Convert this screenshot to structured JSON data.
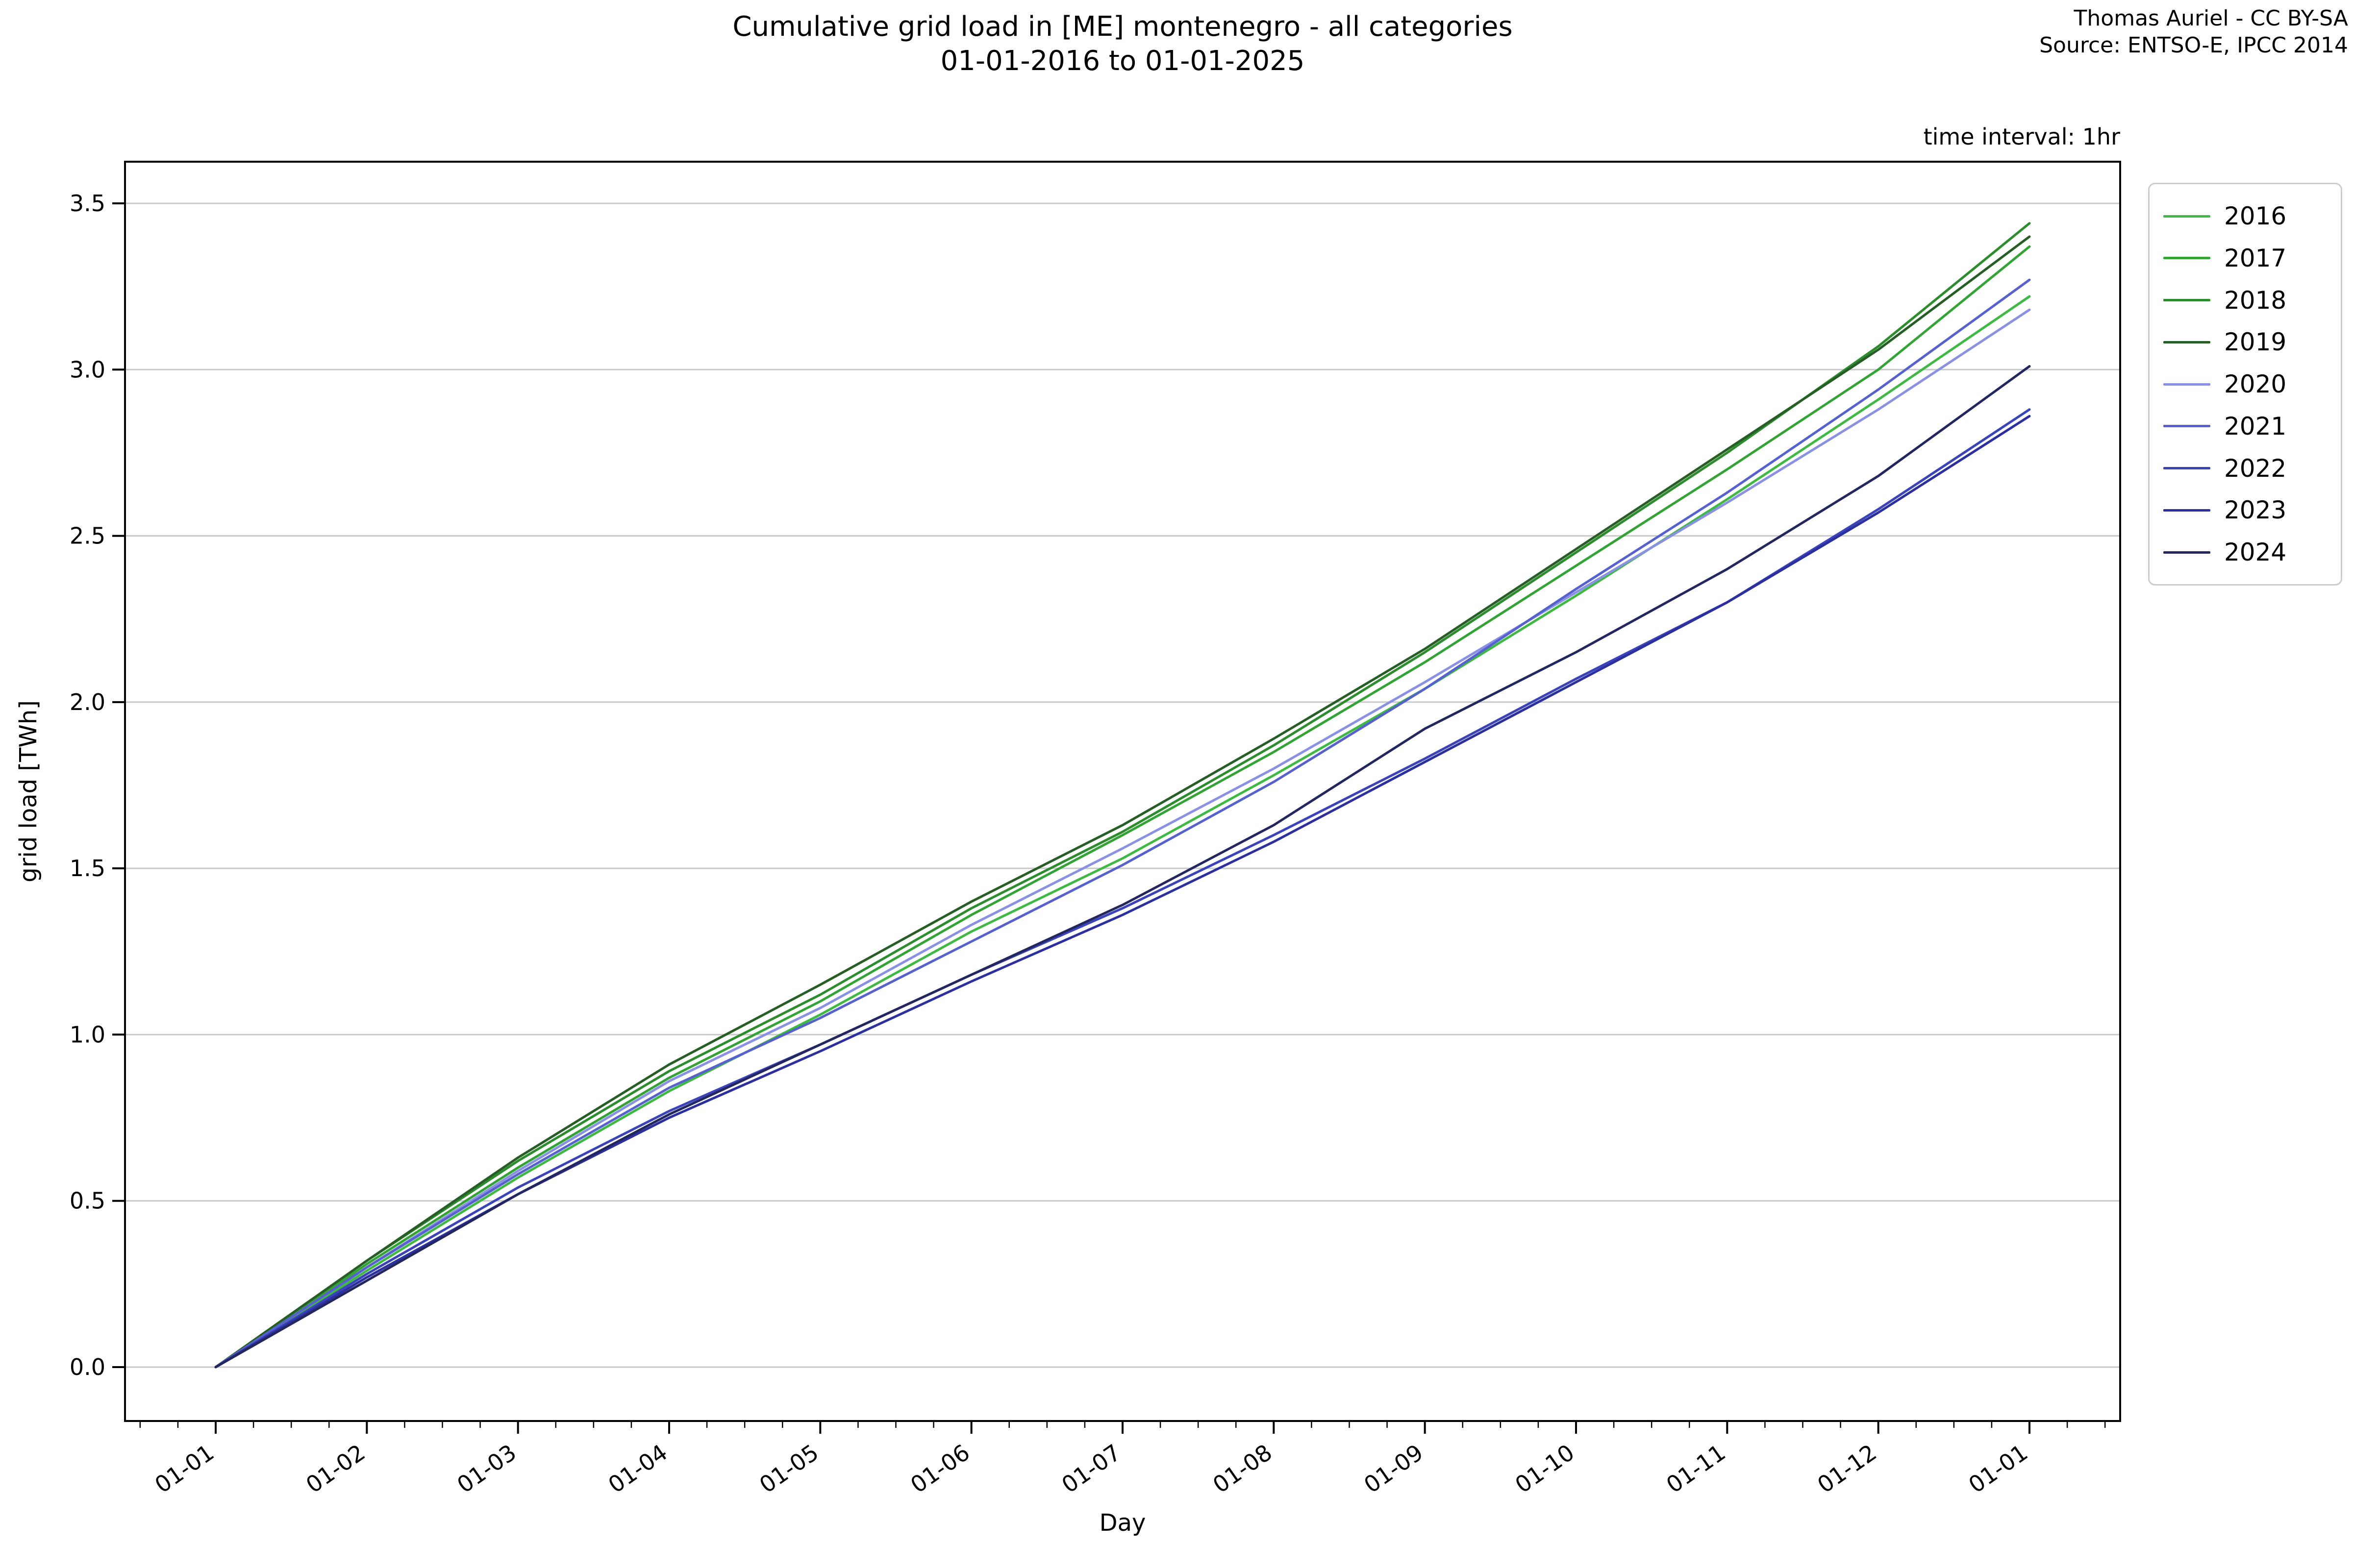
{
  "header": {
    "title_line1": "Cumulative grid load in [ME] montenegro - all categories",
    "title_line2": "01-01-2016 to 01-01-2025",
    "attribution_line1": "Thomas Auriel - CC BY-SA",
    "attribution_line2": "Source: ENTSO-E, IPCC 2014",
    "time_interval_note": "time interval: 1hr"
  },
  "chart_data": {
    "type": "line",
    "title": "Cumulative grid load in [ME] montenegro - all categories 01-01-2016 to 01-01-2025",
    "xlabel": "Day",
    "ylabel": "grid load [TWh]",
    "x_tick_labels": [
      "01-01",
      "01-02",
      "01-03",
      "01-04",
      "01-05",
      "01-06",
      "01-07",
      "01-08",
      "01-09",
      "01-10",
      "01-11",
      "01-12",
      "01-01"
    ],
    "y_tick_labels": [
      "0.0",
      "0.5",
      "1.0",
      "1.5",
      "2.0",
      "2.5",
      "3.0",
      "3.5"
    ],
    "y_ticks": [
      0.0,
      0.5,
      1.0,
      1.5,
      2.0,
      2.5,
      3.0,
      3.5
    ],
    "ylim": [
      0.0,
      3.5
    ],
    "grid": "horizontal",
    "legend_position": "right",
    "colors": {
      "gridline": "#c9c9c9",
      "spine": "#000000",
      "legend_border": "#cccccc"
    },
    "series": [
      {
        "name": "2016",
        "color": "#3fb944",
        "values": [
          0,
          0.29,
          0.57,
          0.83,
          1.06,
          1.31,
          1.53,
          1.78,
          2.04,
          2.32,
          2.61,
          2.91,
          3.22
        ]
      },
      {
        "name": "2017",
        "color": "#34a336",
        "values": [
          0,
          0.31,
          0.6,
          0.87,
          1.1,
          1.36,
          1.6,
          1.85,
          2.12,
          2.41,
          2.7,
          3.0,
          3.37
        ]
      },
      {
        "name": "2018",
        "color": "#2c8c2e",
        "values": [
          0,
          0.32,
          0.62,
          0.89,
          1.12,
          1.38,
          1.61,
          1.87,
          2.15,
          2.45,
          2.75,
          3.07,
          3.44
        ]
      },
      {
        "name": "2019",
        "color": "#265e26",
        "values": [
          0,
          0.32,
          0.63,
          0.91,
          1.15,
          1.4,
          1.63,
          1.89,
          2.16,
          2.46,
          2.76,
          3.06,
          3.4
        ]
      },
      {
        "name": "2020",
        "color": "#8a91e2",
        "values": [
          0,
          0.3,
          0.59,
          0.86,
          1.08,
          1.33,
          1.56,
          1.8,
          2.06,
          2.33,
          2.6,
          2.88,
          3.18
        ]
      },
      {
        "name": "2021",
        "color": "#5661cd",
        "values": [
          0,
          0.3,
          0.58,
          0.84,
          1.05,
          1.28,
          1.51,
          1.76,
          2.04,
          2.34,
          2.63,
          2.94,
          3.27
        ]
      },
      {
        "name": "2022",
        "color": "#3a43b7",
        "values": [
          0,
          0.28,
          0.54,
          0.77,
          0.97,
          1.18,
          1.38,
          1.6,
          1.83,
          2.07,
          2.3,
          2.58,
          2.88
        ]
      },
      {
        "name": "2023",
        "color": "#2b309e",
        "values": [
          0,
          0.27,
          0.52,
          0.75,
          0.95,
          1.16,
          1.36,
          1.58,
          1.82,
          2.06,
          2.3,
          2.57,
          2.86
        ]
      },
      {
        "name": "2024",
        "color": "#23265f",
        "values": [
          0,
          0.26,
          0.52,
          0.76,
          0.97,
          1.18,
          1.39,
          1.63,
          1.92,
          2.15,
          2.4,
          2.68,
          3.01
        ]
      }
    ]
  }
}
